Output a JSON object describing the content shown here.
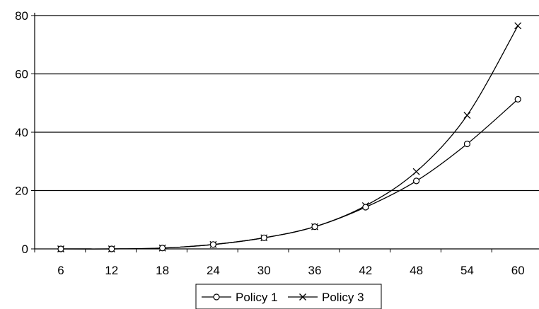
{
  "chart_data": {
    "type": "line",
    "x": [
      6,
      12,
      18,
      24,
      30,
      36,
      42,
      48,
      54,
      60
    ],
    "series": [
      {
        "name": "Policy 1",
        "marker": "circle",
        "values": [
          0,
          0,
          0.3,
          1.5,
          3.8,
          7.6,
          14.3,
          23.3,
          36.0,
          51.3
        ]
      },
      {
        "name": "Policy 3",
        "marker": "x",
        "values": [
          0,
          0,
          0.3,
          1.5,
          3.8,
          7.6,
          14.8,
          26.5,
          45.8,
          76.5
        ]
      }
    ],
    "y_ticks": [
      0,
      20,
      40,
      60,
      80
    ],
    "ylim": [
      0,
      80
    ],
    "grid": "horizontal",
    "legend": "bottom-center",
    "colors": {
      "line": "#000000",
      "grid": "#000000",
      "background": "#ffffff"
    }
  }
}
